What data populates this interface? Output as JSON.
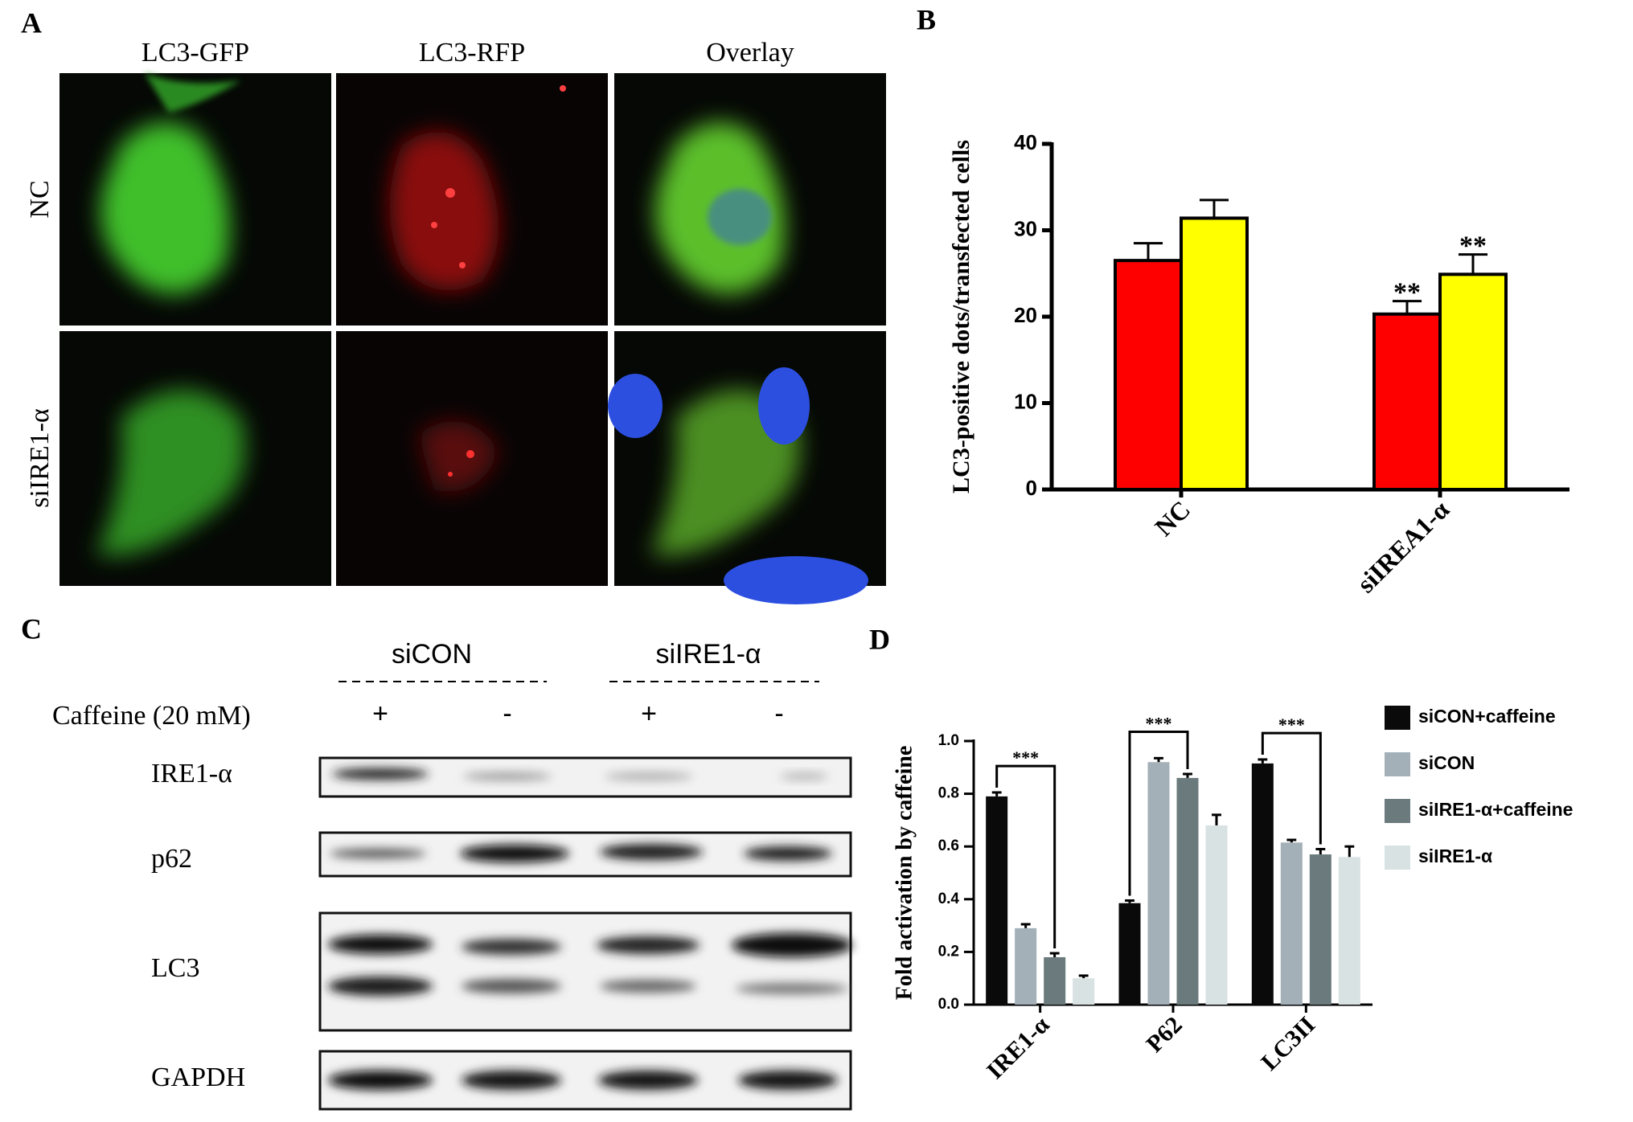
{
  "panels": {
    "a": "A",
    "b": "B",
    "c": "C",
    "d": "D"
  },
  "microscopy": {
    "columns": [
      "LC3-GFP",
      "LC3-RFP",
      "Overlay"
    ],
    "rows": [
      "NC",
      "siIRE1-α"
    ]
  },
  "blot": {
    "groups": [
      "siCON",
      "siIRE1-α"
    ],
    "treatment": "Caffeine (20 mM)",
    "treatment_signs": [
      "+",
      "-",
      "+",
      "-"
    ],
    "bands": [
      "IRE1-α",
      "p62",
      "LC3",
      "GAPDH"
    ]
  },
  "chart_data": [
    {
      "type": "bar",
      "y_label": "LC3-positive dots/transfected cells",
      "categories": [
        "NC",
        "siIREA1-α"
      ],
      "series": [
        {
          "color": "#ff0000",
          "values": [
            26.5,
            20.3
          ],
          "errors": [
            2.0,
            1.5
          ],
          "significance": [
            null,
            "**"
          ]
        },
        {
          "color": "#ffff00",
          "values": [
            31.4,
            24.9
          ],
          "errors": [
            2.1,
            2.3
          ],
          "significance": [
            null,
            "**"
          ]
        }
      ],
      "ylim": [
        0,
        40
      ],
      "yticks": [
        0,
        10,
        20,
        30,
        40
      ]
    },
    {
      "type": "bar",
      "y_label": "Fold activation by caffeine",
      "categories": [
        "IRE1-α",
        "P62",
        "LC3II"
      ],
      "series": [
        {
          "name": "siCON+caffeine",
          "color": "#0a0a0a",
          "values": [
            0.79,
            0.385,
            0.915
          ],
          "errors": [
            0.015,
            0.01,
            0.015
          ]
        },
        {
          "name": "siCON",
          "color": "#a3b0b8",
          "values": [
            0.29,
            0.92,
            0.615
          ],
          "errors": [
            0.015,
            0.015,
            0.01
          ]
        },
        {
          "name": "siIRE1-α+caffeine",
          "color": "#6b7a7c",
          "values": [
            0.18,
            0.86,
            0.57
          ],
          "errors": [
            0.015,
            0.015,
            0.02
          ]
        },
        {
          "name": "siIRE1-α",
          "color": "#d8e2e2",
          "values": [
            0.1,
            0.68,
            0.56
          ],
          "errors": [
            0.01,
            0.04,
            0.04
          ]
        }
      ],
      "brackets": [
        "***",
        "***",
        "***"
      ],
      "ylim": [
        0,
        1
      ],
      "yticks": [
        {
          "value": 0,
          "label": "0.0"
        },
        0.2,
        0.4,
        0.6,
        0.8,
        {
          "value": 1,
          "label": "1.0"
        }
      ],
      "legend": "right"
    }
  ]
}
